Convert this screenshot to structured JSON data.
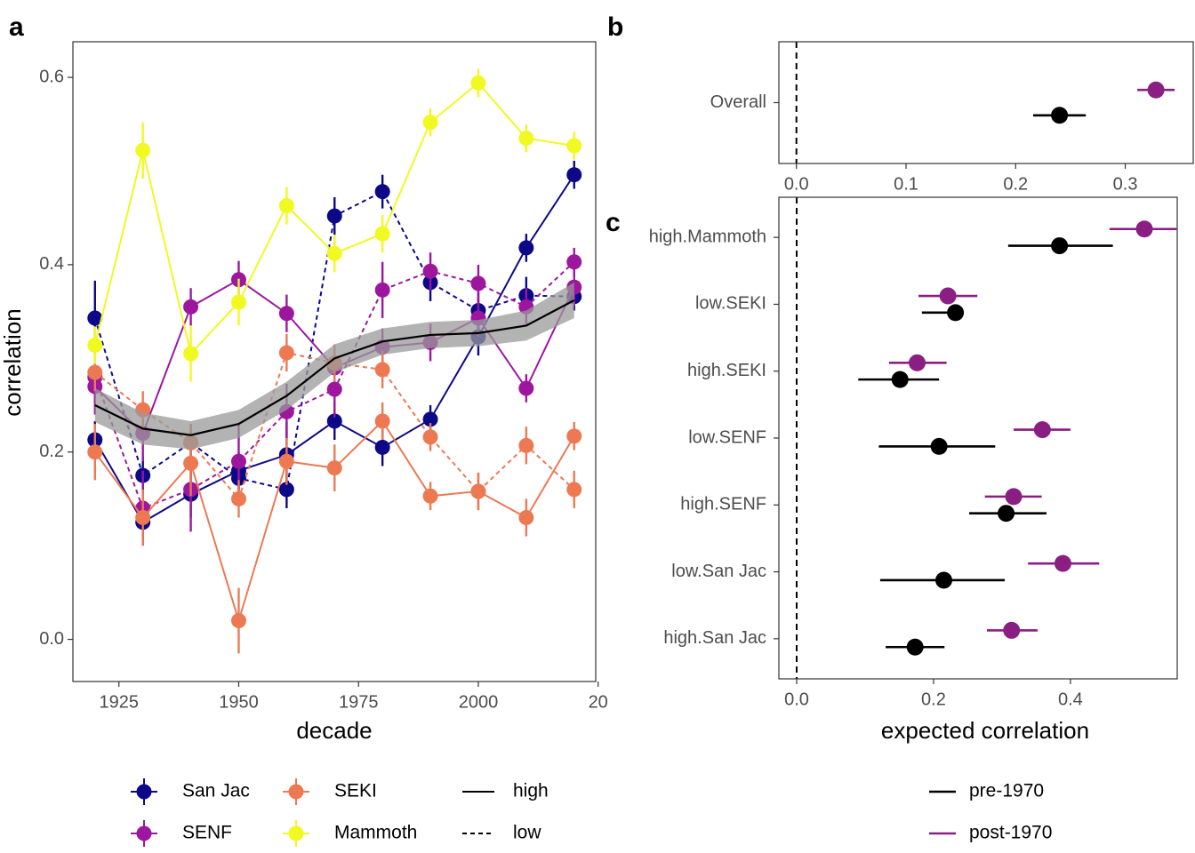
{
  "chart_data": [
    {
      "type": "line",
      "label": "a",
      "xlabel": "decade",
      "ylabel": "correlation",
      "x": [
        1920,
        1930,
        1940,
        1950,
        1960,
        1970,
        1980,
        1990,
        2000,
        2010,
        2020
      ],
      "xlim": [
        1915.4,
        2024.5
      ],
      "xticks": [
        1925,
        1950,
        1975,
        2000,
        {
          "value": 2025,
          "label": "20"
        }
      ],
      "ylim": [
        -0.045,
        0.638
      ],
      "yticks": [
        {
          "value": 0,
          "label": "0.0"
        },
        0.2,
        0.4,
        0.6
      ],
      "linetypes": [
        {
          "name": "high",
          "style": "solid"
        },
        {
          "name": "low",
          "style": "dashed"
        }
      ],
      "series": [
        {
          "name": "San Jac",
          "color": "#0d0887",
          "groups": [
            {
              "values": [
                0.213,
                0.125,
                0.155,
                0.18,
                0.197,
                0.233,
                0.205,
                0.235,
                0.323,
                0.418,
                0.496
              ],
              "errors": [
                0.02,
                0.02,
                0.025,
                0.02,
                0.035,
                0.02,
                0.02,
                0.015,
                0.02,
                0.015,
                0.015
              ]
            },
            {
              "values": [
                0.343,
                0.175,
                0.21,
                0.172,
                0.16,
                0.452,
                0.478,
                0.381,
                0.351,
                0.367,
                0.366
              ],
              "errors": [
                0.04,
                0.02,
                0.02,
                0.02,
                0.02,
                0.02,
                0.018,
                0.02,
                0.02,
                0.02,
                0.015
              ]
            }
          ]
        },
        {
          "name": "SENF",
          "color": "#9c179e",
          "groups": [
            {
              "values": [
                0.27,
                0.22,
                0.355,
                0.384,
                0.348,
                0.29,
                0.312,
                0.317,
                0.343,
                0.268,
                0.376
              ],
              "errors": [
                0.03,
                0.03,
                0.02,
                0.02,
                0.02,
                0.02,
                0.02,
                0.02,
                0.02,
                0.015,
                0.02
              ]
            },
            {
              "values": [
                0.28,
                0.14,
                0.16,
                0.19,
                0.243,
                0.267,
                0.373,
                0.393,
                0.38,
                0.355,
                0.403
              ],
              "errors": [
                0.03,
                0.04,
                0.045,
                0.04,
                0.03,
                0.03,
                0.03,
                0.02,
                0.02,
                0.02,
                0.015
              ]
            }
          ]
        },
        {
          "name": "SEKI",
          "color": "#ed7953",
          "groups": [
            {
              "values": [
                0.2,
                0.13,
                0.188,
                0.02,
                0.19,
                0.183,
                0.233,
                0.153,
                0.158,
                0.13,
                0.217
              ],
              "errors": [
                0.03,
                0.03,
                0.035,
                0.035,
                0.025,
                0.025,
                0.02,
                0.015,
                0.02,
                0.02,
                0.015
              ]
            },
            {
              "values": [
                0.285,
                0.245,
                0.21,
                0.15,
                0.306,
                0.295,
                0.288,
                0.216,
                0.158,
                0.207,
                0.16
              ],
              "errors": [
                0.02,
                0.02,
                0.02,
                0.02,
                0.02,
                0.02,
                0.02,
                0.015,
                0.02,
                0.02,
                0.02
              ]
            }
          ]
        },
        {
          "name": "Mammoth",
          "color": "#f0f921",
          "groups": [
            {
              "values": [
                0.314,
                0.522,
                0.305,
                0.36,
                0.463,
                0.412,
                0.433,
                0.552,
                0.594,
                0.535,
                0.527
              ],
              "errors": [
                0.02,
                0.03,
                0.03,
                0.025,
                0.02,
                0.02,
                0.02,
                0.015,
                0.015,
                0.015,
                0.015
              ]
            },
            null
          ]
        }
      ],
      "trend": {
        "color": "#000000",
        "band_color": "#999999",
        "values": [
          0.25,
          0.225,
          0.218,
          0.23,
          0.26,
          0.3,
          0.318,
          0.325,
          0.327,
          0.335,
          0.362
        ],
        "lower": [
          0.232,
          0.208,
          0.203,
          0.215,
          0.245,
          0.285,
          0.304,
          0.311,
          0.313,
          0.319,
          0.343
        ],
        "upper": [
          0.268,
          0.242,
          0.233,
          0.245,
          0.275,
          0.315,
          0.332,
          0.339,
          0.341,
          0.351,
          0.381
        ]
      }
    },
    {
      "type": "dot-interval",
      "label": "b",
      "categories": [
        "Overall"
      ],
      "xlim": [
        -0.016,
        0.362
      ],
      "xticks": [
        {
          "value": 0,
          "label": "0.0"
        },
        0.1,
        0.2,
        0.3
      ],
      "refline": 0,
      "series": [
        {
          "color": "#000000",
          "values": [
            0.24
          ],
          "lower": [
            0.216
          ],
          "upper": [
            0.264
          ]
        },
        {
          "color": "#8a1e82",
          "values": [
            0.328
          ],
          "lower": [
            0.311
          ],
          "upper": [
            0.345
          ]
        }
      ]
    },
    {
      "type": "dot-interval",
      "label": "c",
      "xlabel": "expected correlation",
      "categories": [
        "high.Mammoth",
        "low.SEKI",
        "high.SEKI",
        "low.SENF",
        "high.SENF",
        "low.San Jac",
        "high.San Jac"
      ],
      "xlim": [
        -0.026,
        0.556
      ],
      "xticks": [
        {
          "value": 0,
          "label": "0.0"
        },
        0.2,
        0.4
      ],
      "refline": 0,
      "series": [
        {
          "name": "pre-1970",
          "color": "#000000",
          "values": [
            0.384,
            0.232,
            0.151,
            0.208,
            0.306,
            0.215,
            0.173
          ],
          "lower": [
            0.309,
            0.183,
            0.09,
            0.12,
            0.252,
            0.122,
            0.13
          ],
          "upper": [
            0.462,
            0.243,
            0.208,
            0.29,
            0.365,
            0.304,
            0.216
          ]
        },
        {
          "name": "post-1970",
          "color": "#8a1e82",
          "values": [
            0.508,
            0.221,
            0.176,
            0.359,
            0.317,
            0.389,
            0.314
          ],
          "lower": [
            0.457,
            0.178,
            0.135,
            0.317,
            0.275,
            0.338,
            0.278
          ],
          "upper": [
            0.555,
            0.264,
            0.219,
            0.4,
            0.358,
            0.442,
            0.352
          ]
        }
      ]
    }
  ]
}
